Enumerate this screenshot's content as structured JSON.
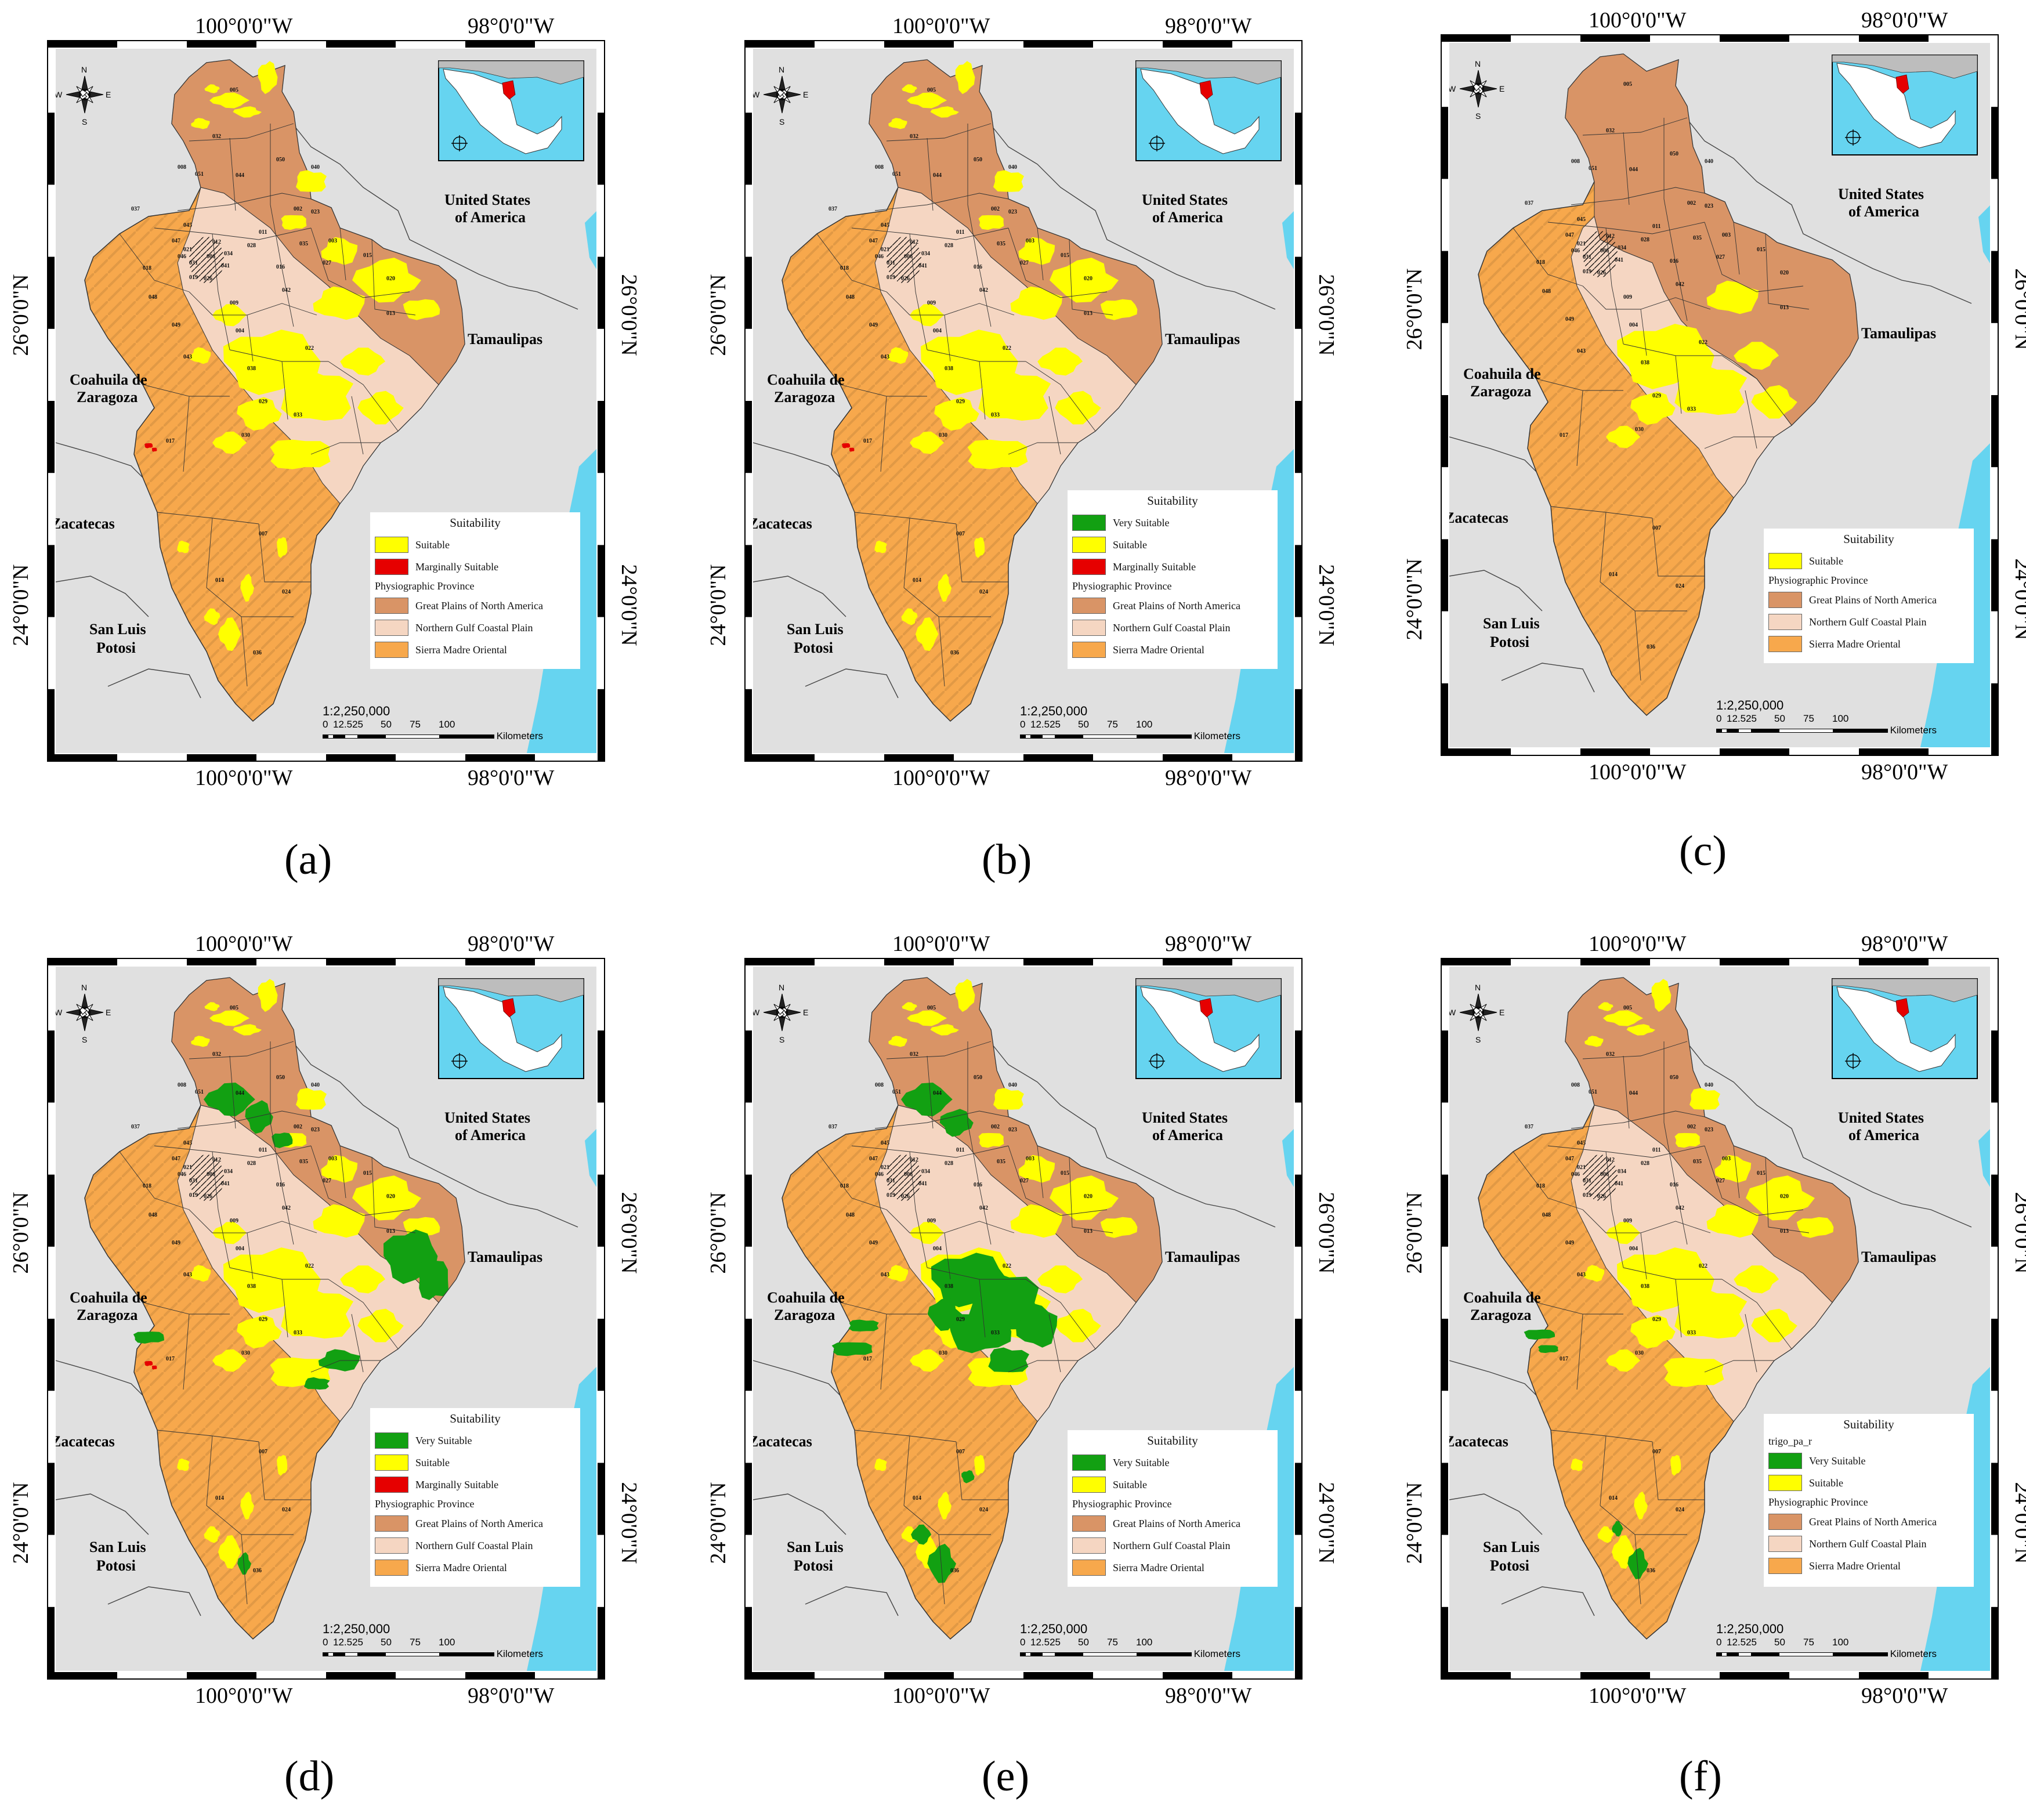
{
  "coords": {
    "lon_left": "100°0'0\"W",
    "lon_right": "98°0'0\"W",
    "lat_upper": "26°0'0\"N",
    "lat_lower": "24°0'0\"N"
  },
  "regions": {
    "usa_line1": "United States",
    "usa_line2": "of America",
    "tamaulipas": "Tamaulipas",
    "coahuila_line1": "Coahuila de",
    "coahuila_line2": "Zaragoza",
    "zacatecas": "Zacatecas",
    "slp_line1": "San Luis",
    "slp_line2": "Potosi"
  },
  "compass": {
    "n": "N",
    "s": "S",
    "e": "E",
    "w": "W"
  },
  "municipality_codes": [
    "005",
    "032",
    "050",
    "040",
    "008",
    "051",
    "044",
    "037",
    "045",
    "002",
    "023",
    "011",
    "035",
    "003",
    "047",
    "012",
    "028",
    "015",
    "021",
    "006",
    "034",
    "027",
    "018",
    "031",
    "016",
    "046",
    "041",
    "042",
    "019",
    "026",
    "020",
    "048",
    "009",
    "013",
    "049",
    "004",
    "022",
    "043",
    "038",
    "017",
    "029",
    "033",
    "030",
    "007",
    "014",
    "024",
    "036"
  ],
  "scale": {
    "ratio": "1:2,250,000",
    "ticks": [
      "0",
      "12.525",
      "50",
      "75",
      "100"
    ],
    "unit": "Kilometers"
  },
  "legend_text": {
    "title": "Suitability",
    "province_header": "Physiographic Province",
    "very": "Very Suitable",
    "suitable": "Suitable",
    "marginal": "Marginally Suitable",
    "gp": "Great Plains of North America",
    "ngcp": "Northern Gulf Coastal Plain",
    "smo": "Sierra Madre Oriental",
    "layer_f": "trigo_pa_r"
  },
  "colors": {
    "very": "#12a012",
    "suitable": "#ffff00",
    "marginal": "#e60000",
    "gp": "#d99466",
    "ngcp": "#f5d6c2",
    "smo": "#f7a84c",
    "background": "#e0e0e0",
    "water": "#66d4f0"
  },
  "panels": [
    {
      "id": "a",
      "caption": "(a)",
      "green": 0,
      "marginal": true,
      "suitable_colour": "#ffff00",
      "lists": [
        "suitable",
        "marginal"
      ],
      "layer_title": false
    },
    {
      "id": "b",
      "caption": "(b)",
      "green": 0,
      "marginal": true,
      "suitable_colour": "#ffff00",
      "lists": [
        "very",
        "suitable",
        "marginal"
      ],
      "layer_title": false
    },
    {
      "id": "c",
      "caption": "(c)",
      "green": 0,
      "marginal": false,
      "suitable_colour": "#ffff00",
      "lists": [
        "suitable"
      ],
      "layer_title": false
    },
    {
      "id": "d",
      "caption": "(d)",
      "green": 2,
      "marginal": true,
      "suitable_colour": "#ffff00",
      "lists": [
        "very",
        "suitable",
        "marginal"
      ],
      "layer_title": false
    },
    {
      "id": "e",
      "caption": "(e)",
      "green": 3,
      "marginal": false,
      "suitable_colour": "#ffff00",
      "lists": [
        "very",
        "suitable"
      ],
      "layer_title": false
    },
    {
      "id": "f",
      "caption": "(f)",
      "green": 1,
      "marginal": false,
      "suitable_colour": "#ffff00",
      "lists": [
        "very",
        "suitable"
      ],
      "layer_title": true
    }
  ]
}
